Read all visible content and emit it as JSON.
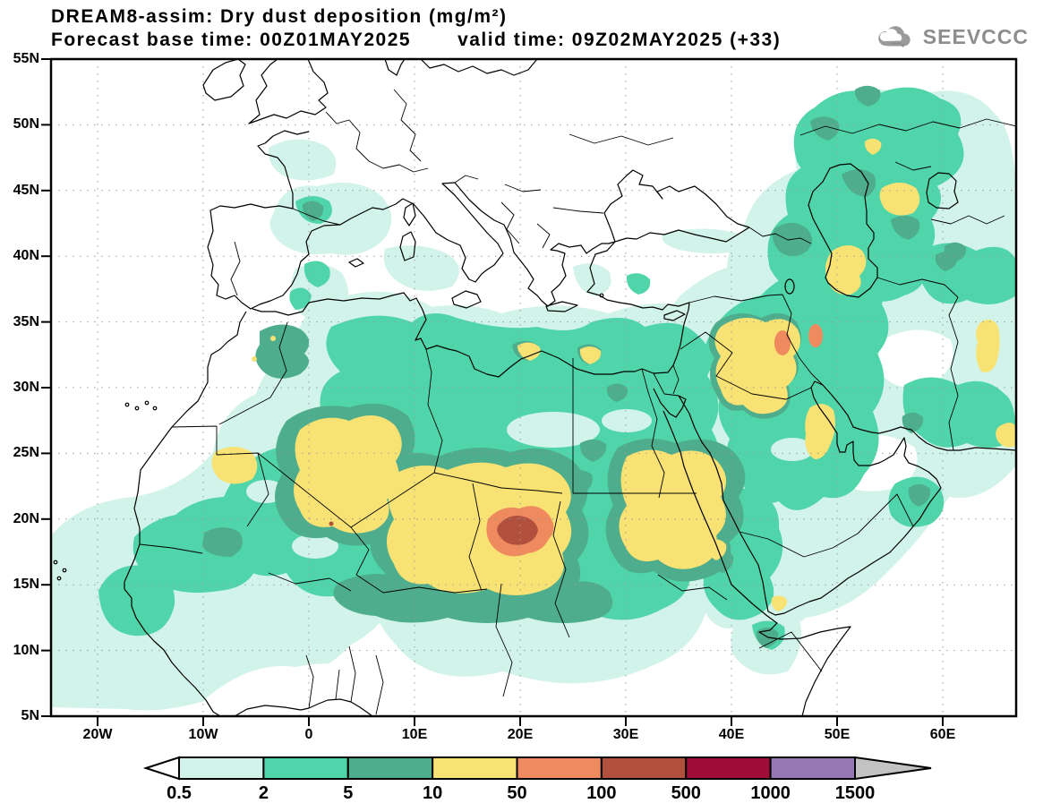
{
  "header": {
    "title_line1": "DREAM8-assim: Dry dust deposition (mg/m²)",
    "forecast_base": "Forecast base time: 00Z01MAY2025",
    "valid_time": "valid time: 09Z02MAY2025 (+33)"
  },
  "logo": {
    "text": "SEEVCCC",
    "color": "#8d8d8d"
  },
  "map": {
    "lat_labels": [
      "55N",
      "50N",
      "45N",
      "40N",
      "35N",
      "30N",
      "25N",
      "20N",
      "15N",
      "10N",
      "5N"
    ],
    "lon_labels": [
      "20W",
      "10W",
      "0",
      "10E",
      "20E",
      "30E",
      "40E",
      "50E",
      "60E"
    ]
  },
  "colorbar": {
    "tick_labels": [
      "0.5",
      "2",
      "5",
      "10",
      "50",
      "100",
      "500",
      "1000",
      "1500"
    ],
    "levels": [
      0.5,
      2,
      5,
      10,
      50,
      100,
      500,
      1000,
      1500
    ],
    "segment_colors": [
      "#d2f3ea",
      "#50d5aa",
      "#4ead8d",
      "#f7e273",
      "#ef8a5e",
      "#b2503e",
      "#a00d38",
      "#9678b5"
    ],
    "left_arrow_color": "#ffffff",
    "right_arrow_color": "#c3c3c3",
    "outline_color": "#000000"
  }
}
